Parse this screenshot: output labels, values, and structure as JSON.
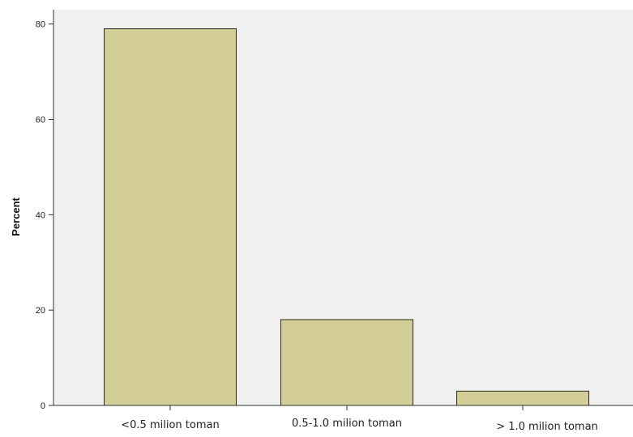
{
  "chart_data": {
    "type": "bar",
    "categories": [
      "<0.5 milion toman",
      "0.5-1.0 milion toman",
      "> 1.0 milion toman"
    ],
    "values": [
      79,
      18,
      3
    ],
    "title": "",
    "xlabel": "",
    "ylabel": "Percent",
    "ylim": [
      0,
      83
    ],
    "yticks": [
      0,
      20,
      40,
      60,
      80
    ],
    "grid": false,
    "colors": {
      "bar_fill": "#d3cd97",
      "bar_stroke": "#2b2b1a",
      "plot_background": "#f0f0f0",
      "axis": "#333333"
    }
  }
}
